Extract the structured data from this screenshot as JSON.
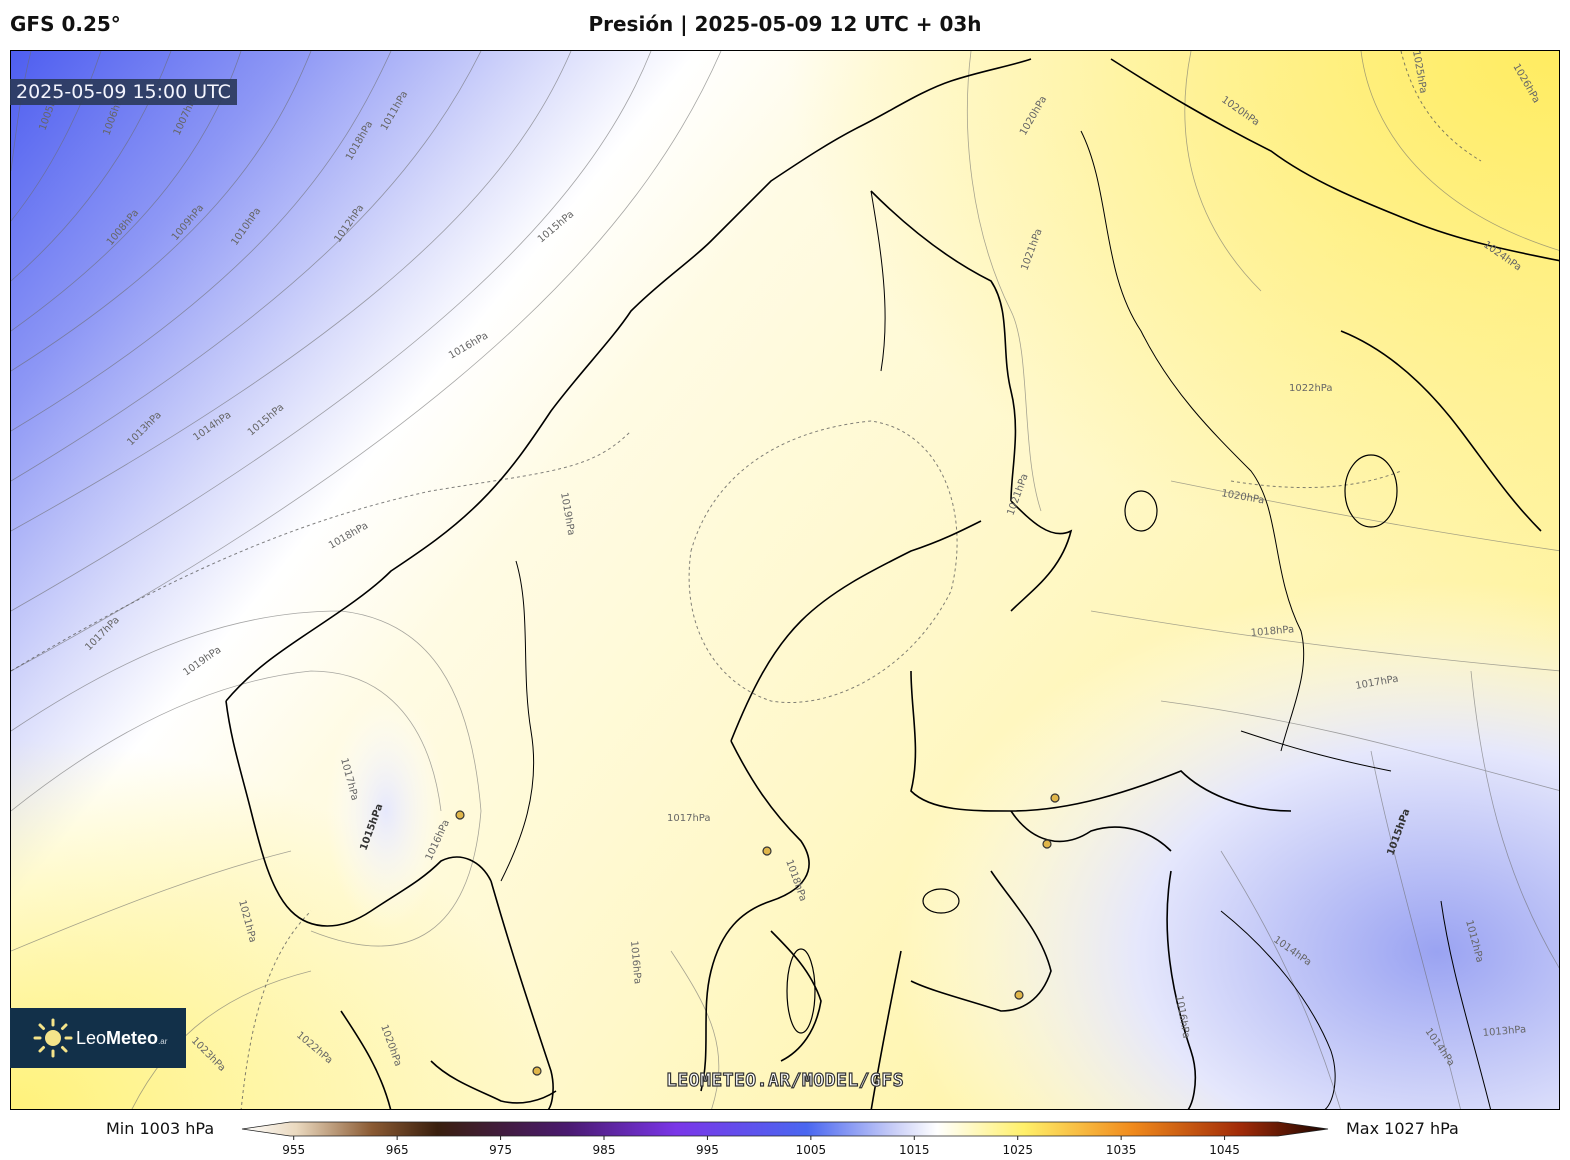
{
  "header": {
    "model": "GFS 0.25°",
    "title": "Presión | 2025-05-09 12 UTC + 03h"
  },
  "valid_time": "2025-05-09 15:00 UTC",
  "watermark": "LEOMETEO.AR/MODEL/GFS",
  "logo": {
    "name_light": "Leo",
    "name_bold": "Meteo",
    "suffix": ".ar"
  },
  "colorbar": {
    "min_label": "Min 1003 hPa",
    "max_label": "Max 1027 hPa",
    "ticks": [
      "955",
      "965",
      "975",
      "985",
      "995",
      "1005",
      "1015",
      "1025",
      "1035",
      "1045"
    ],
    "range": [
      950,
      1055
    ],
    "colors": {
      "low_brown": "#3a1f0e",
      "purple": "#7a36e8",
      "blue": "#4a67f0",
      "white": "#ffffff",
      "yellow": "#fff06a",
      "orange": "#f08a1c",
      "dark_red": "#5a0f05"
    }
  },
  "isobar_labels": [
    "1005hPa",
    "1006hPa",
    "1007hPa",
    "1008hPa",
    "1009hPa",
    "1010hPa",
    "1011hPa",
    "1012hPa",
    "1015hPa",
    "1016hPa",
    "1013hPa",
    "1014hPa",
    "1015hPa",
    "1018hPa",
    "1017hPa",
    "1019hPa",
    "1019hPa",
    "1017hPa",
    "1015hPa",
    "1016hPa",
    "1017hPa",
    "1018hPa",
    "1016hPa",
    "1021hPa",
    "1020hPa",
    "1022hPa",
    "1023hPa",
    "1020hPa",
    "1021hPa",
    "1020hPa",
    "1021hPa",
    "1022hPa",
    "1020hPa",
    "1018hPa",
    "1017hPa",
    "1015hPa",
    "1014hPa",
    "1012hPa",
    "1013hPa",
    "1014hPa",
    "1016hPa",
    "1024hPa",
    "1025hPa",
    "1026hPa",
    "1018hPa"
  ],
  "legend_icons": [
    "sun-icon"
  ]
}
